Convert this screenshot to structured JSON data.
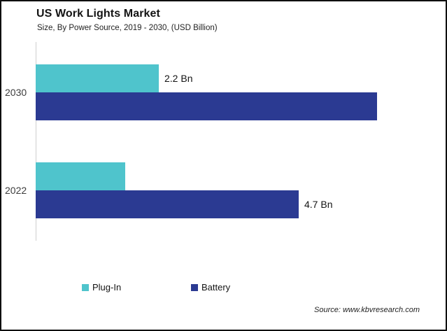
{
  "header": {
    "title": "US Work Lights Market",
    "subtitle": "Size, By Power Source, 2019 - 2030, (USD Billion)"
  },
  "chart_data": {
    "type": "bar",
    "orientation": "horizontal",
    "title": "US Work Lights Market",
    "subtitle": "Size, By Power Source, 2019 - 2030, (USD Billion)",
    "unit": "USD Billion",
    "categories": [
      "2030",
      "2022"
    ],
    "series": [
      {
        "name": "Plug-In",
        "color": "#4FC4CC",
        "values": [
          2.2,
          1.6
        ],
        "value_labels": [
          "2.2 Bn",
          ""
        ]
      },
      {
        "name": "Battery",
        "color": "#2B3A92",
        "values": [
          6.1,
          4.7
        ],
        "value_labels": [
          "",
          "4.7 Bn"
        ]
      }
    ],
    "xlim": [
      0,
      7.2
    ],
    "grid": false,
    "legend_position": "bottom"
  },
  "footer": {
    "source": "Source: www.kbvresearch.com"
  }
}
